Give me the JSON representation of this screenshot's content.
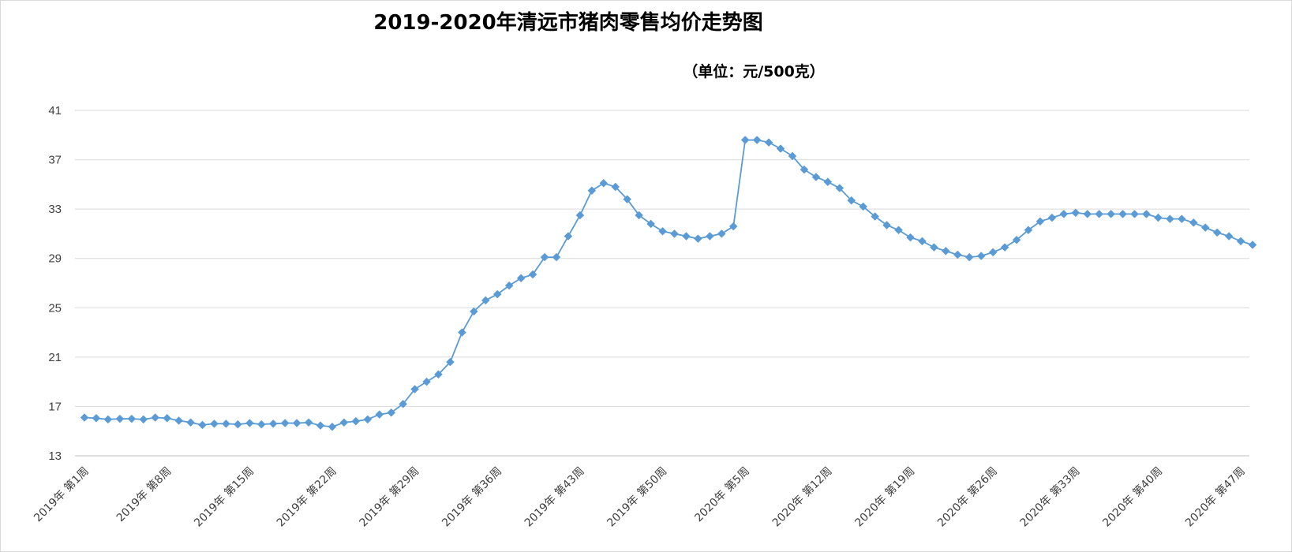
{
  "chart_data": {
    "type": "line",
    "title": "2019-2020年清远市猪肉零售均价走势图",
    "unit_label": "（单位：元/500克）",
    "ylim": [
      13,
      41
    ],
    "yticks": [
      13,
      17,
      21,
      25,
      29,
      33,
      37,
      41
    ],
    "grid": "horizontal",
    "legend": "none",
    "colors": {
      "line": "#5b9bd5",
      "marker": "#5b9bd5",
      "grid": "#d9d9d9",
      "axis": "#bfbfbf"
    },
    "x_tick_labels": [
      {
        "index": 0,
        "label": "2019年 第1周"
      },
      {
        "index": 7,
        "label": "2019年 第8周"
      },
      {
        "index": 14,
        "label": "2019年 第15周"
      },
      {
        "index": 21,
        "label": "2019年 第22周"
      },
      {
        "index": 28,
        "label": "2019年 第29周"
      },
      {
        "index": 35,
        "label": "2019年 第36周"
      },
      {
        "index": 42,
        "label": "2019年 第43周"
      },
      {
        "index": 49,
        "label": "2019年 第50周"
      },
      {
        "index": 56,
        "label": "2020年 第5周"
      },
      {
        "index": 63,
        "label": "2020年 第12周"
      },
      {
        "index": 70,
        "label": "2020年 第19周"
      },
      {
        "index": 77,
        "label": "2020年 第26周"
      },
      {
        "index": 84,
        "label": "2020年 第33周"
      },
      {
        "index": 91,
        "label": "2020年 第40周"
      },
      {
        "index": 98,
        "label": "2020年 第47周"
      }
    ],
    "series": [
      {
        "values": [
          16.1,
          16.05,
          15.95,
          16.0,
          16.0,
          15.95,
          16.1,
          16.05,
          15.85,
          15.7,
          15.5,
          15.6,
          15.6,
          15.55,
          15.65,
          15.55,
          15.6,
          15.65,
          15.65,
          15.7,
          15.45,
          15.35,
          15.7,
          15.8,
          15.95,
          16.35,
          16.5,
          17.2,
          18.4,
          19.0,
          19.6,
          20.6,
          23.0,
          24.7,
          25.6,
          26.1,
          26.8,
          27.4,
          27.7,
          29.1,
          29.1,
          30.8,
          32.5,
          34.5,
          35.1,
          34.8,
          33.8,
          32.5,
          31.8,
          31.2,
          31.0,
          30.8,
          30.6,
          30.8,
          31.0,
          31.6,
          38.6,
          38.6,
          38.4,
          37.9,
          37.3,
          36.2,
          35.6,
          35.2,
          34.7,
          33.7,
          33.2,
          32.4,
          31.7,
          31.3,
          30.7,
          30.4,
          29.9,
          29.6,
          29.3,
          29.1,
          29.2,
          29.5,
          29.9,
          30.5,
          31.3,
          32.0,
          32.3,
          32.6,
          32.7,
          32.6,
          32.6,
          32.6,
          32.6,
          32.6,
          32.6,
          32.3,
          32.2,
          32.2,
          31.9,
          31.5,
          31.1,
          30.8,
          30.4,
          30.1
        ]
      }
    ]
  }
}
